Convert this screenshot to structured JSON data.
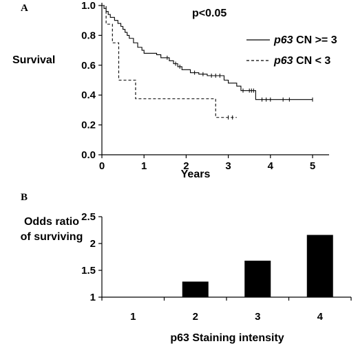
{
  "chart_data": [
    {
      "type": "line",
      "panel_label": "A",
      "ylabel": "Survival",
      "xlabel": "Years",
      "annotation": "p<0.05",
      "xlim": [
        0,
        5.5
      ],
      "ylim": [
        0,
        1.0
      ],
      "x_ticks": [
        "0",
        "1",
        "2",
        "3",
        "4",
        "5"
      ],
      "y_ticks": [
        "0.0",
        "0.2",
        "0.4",
        "0.6",
        "0.8",
        "1.0"
      ],
      "legend_placement": "right",
      "series": [
        {
          "name_gene": "p63",
          "name_rest": "CN >= 3",
          "style": "solid",
          "steps": [
            [
              0,
              1.0
            ],
            [
              0.05,
              0.98
            ],
            [
              0.1,
              0.96
            ],
            [
              0.15,
              0.94
            ],
            [
              0.2,
              0.92
            ],
            [
              0.3,
              0.9
            ],
            [
              0.38,
              0.88
            ],
            [
              0.45,
              0.86
            ],
            [
              0.5,
              0.84
            ],
            [
              0.55,
              0.82
            ],
            [
              0.6,
              0.8
            ],
            [
              0.65,
              0.78
            ],
            [
              0.75,
              0.75
            ],
            [
              0.85,
              0.72
            ],
            [
              0.95,
              0.7
            ],
            [
              1.0,
              0.68
            ],
            [
              1.3,
              0.67
            ],
            [
              1.4,
              0.65
            ],
            [
              1.6,
              0.63
            ],
            [
              1.7,
              0.61
            ],
            [
              1.8,
              0.59
            ],
            [
              1.9,
              0.57
            ],
            [
              2.1,
              0.55
            ],
            [
              2.3,
              0.54
            ],
            [
              2.5,
              0.53
            ],
            [
              2.9,
              0.5
            ],
            [
              3.0,
              0.48
            ],
            [
              3.2,
              0.46
            ],
            [
              3.3,
              0.43
            ],
            [
              3.65,
              0.37
            ],
            [
              5.0,
              0.37
            ]
          ],
          "censored": [
            [
              1.55,
              0.65
            ],
            [
              1.75,
              0.61
            ],
            [
              1.85,
              0.59
            ],
            [
              2.2,
              0.55
            ],
            [
              2.4,
              0.54
            ],
            [
              2.6,
              0.53
            ],
            [
              2.7,
              0.53
            ],
            [
              2.8,
              0.53
            ],
            [
              3.35,
              0.43
            ],
            [
              3.5,
              0.43
            ],
            [
              3.55,
              0.43
            ],
            [
              3.6,
              0.43
            ],
            [
              3.8,
              0.37
            ],
            [
              3.9,
              0.37
            ],
            [
              4.0,
              0.37
            ],
            [
              4.3,
              0.37
            ],
            [
              4.45,
              0.37
            ],
            [
              5.0,
              0.37
            ]
          ]
        },
        {
          "name_gene": "p63",
          "name_rest": "CN < 3",
          "style": "dashed",
          "steps": [
            [
              0,
              1.0
            ],
            [
              0.1,
              0.875
            ],
            [
              0.25,
              0.75
            ],
            [
              0.4,
              0.5
            ],
            [
              0.8,
              0.375
            ],
            [
              2.7,
              0.25
            ],
            [
              3.2,
              0.25
            ]
          ],
          "censored": [
            [
              3.0,
              0.25
            ],
            [
              3.1,
              0.25
            ]
          ]
        }
      ]
    },
    {
      "type": "bar",
      "panel_label": "B",
      "ylabel": [
        "Odds ratio",
        "of surviving"
      ],
      "xlabel": "p63 Staining intensity",
      "categories": [
        "1",
        "2",
        "3",
        "4"
      ],
      "values": [
        1.0,
        1.29,
        1.68,
        2.16
      ],
      "ylim": [
        1,
        2.5
      ],
      "y_ticks": [
        "1",
        "1.5",
        "2",
        "2.5"
      ]
    }
  ]
}
